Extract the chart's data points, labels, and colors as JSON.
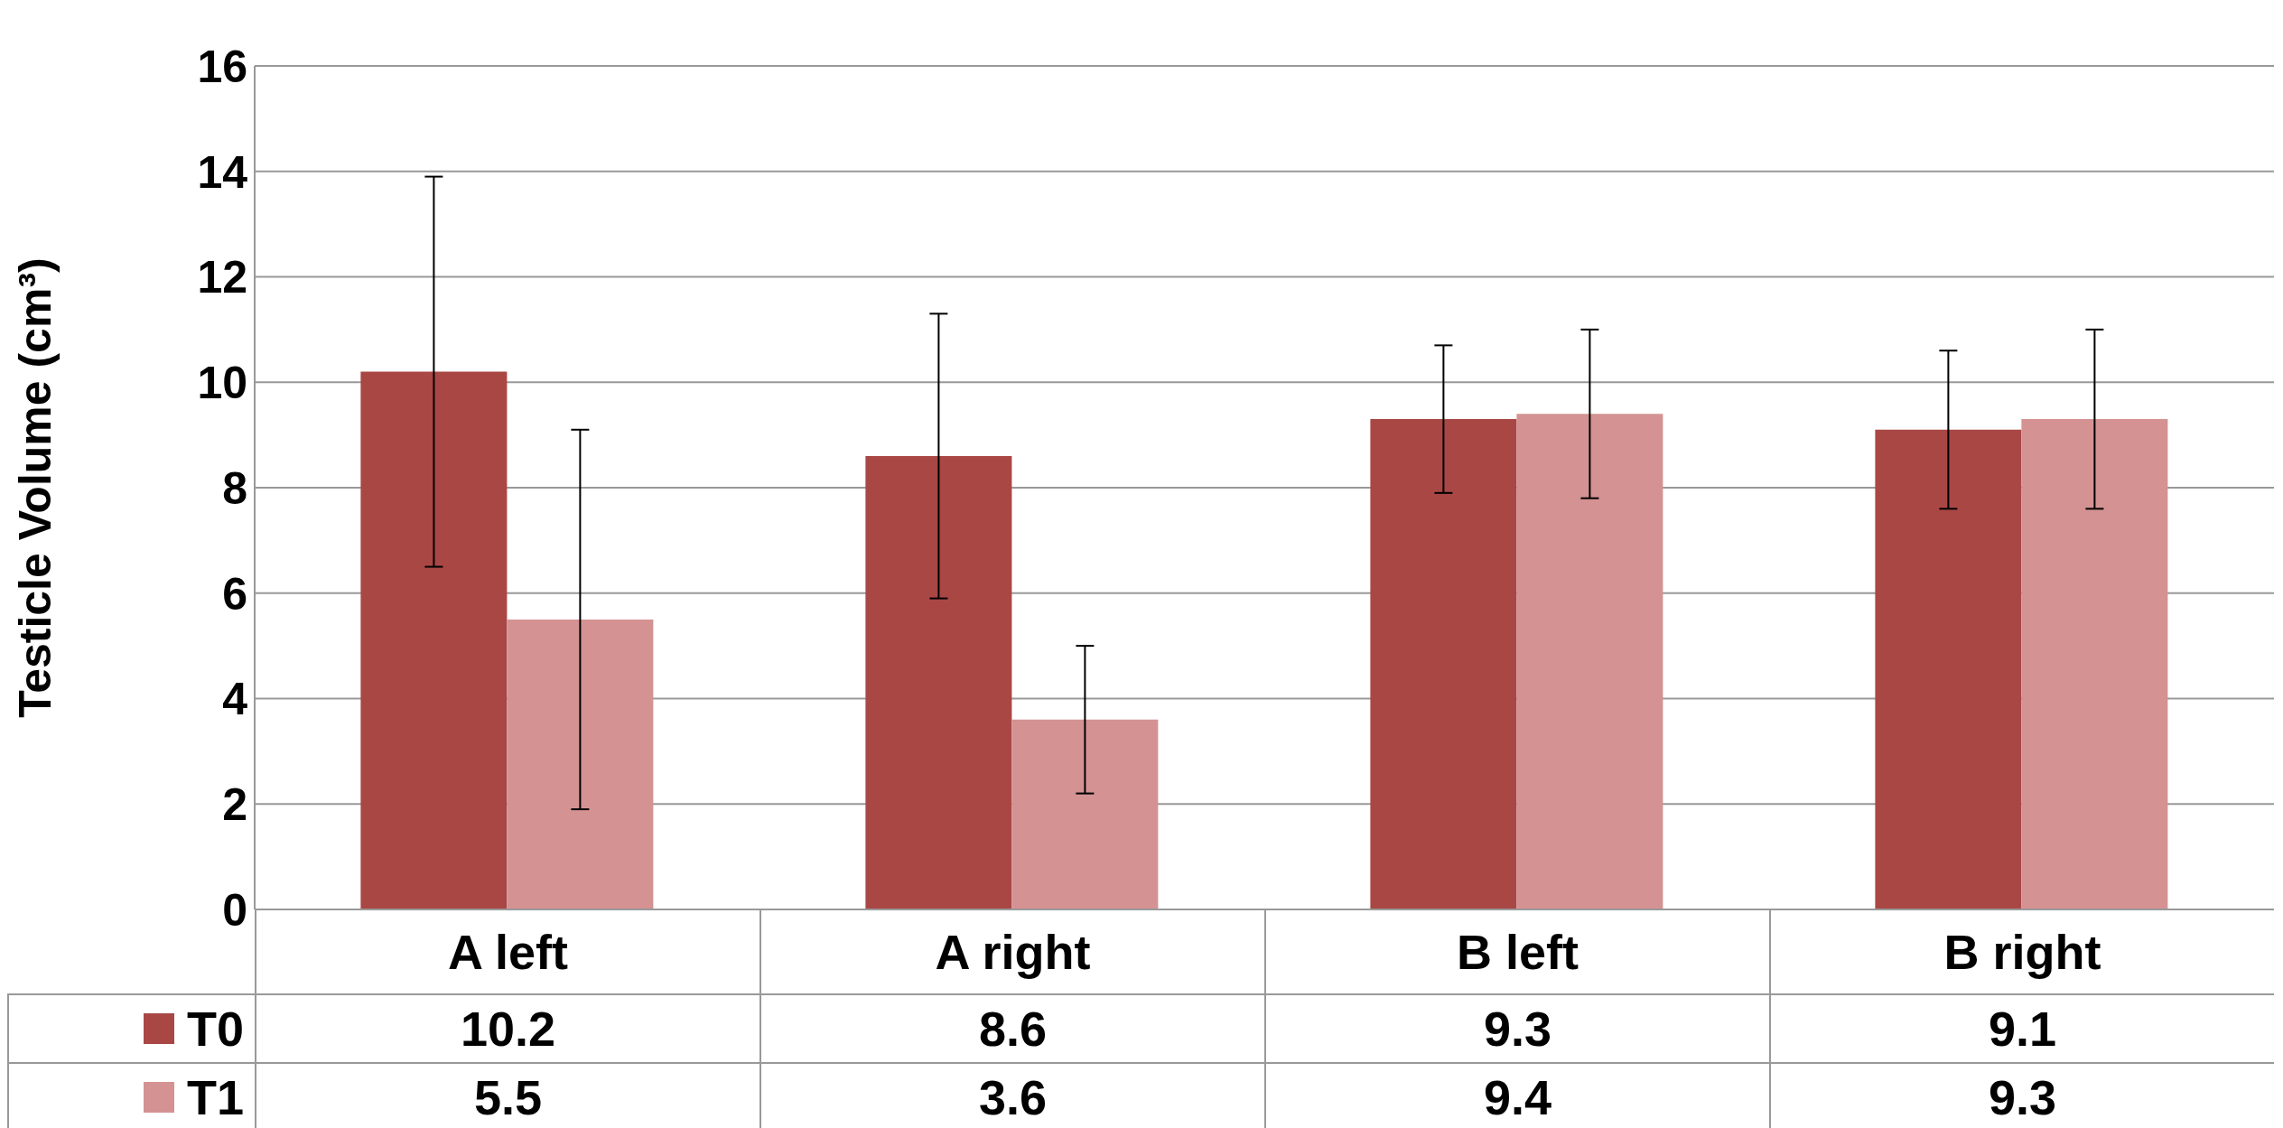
{
  "chart_data": {
    "type": "bar",
    "ylabel": "Testicle Volume (cm³)",
    "categories": [
      "A left",
      "A right",
      "B left",
      "B right"
    ],
    "series": [
      {
        "name": "T0",
        "color": "#a94744",
        "values": [
          10.2,
          8.6,
          9.3,
          9.1
        ],
        "errors": [
          3.7,
          2.7,
          1.4,
          1.5
        ]
      },
      {
        "name": "T1",
        "color": "#d49292",
        "values": [
          5.5,
          3.6,
          9.4,
          9.3
        ],
        "errors": [
          3.6,
          1.4,
          1.6,
          1.7
        ]
      }
    ],
    "ylim": [
      0,
      16
    ],
    "yticks": [
      0,
      2,
      4,
      6,
      8,
      10,
      12,
      14,
      16
    ],
    "grid": "y",
    "legend": "bottom left",
    "data_labels": true
  }
}
